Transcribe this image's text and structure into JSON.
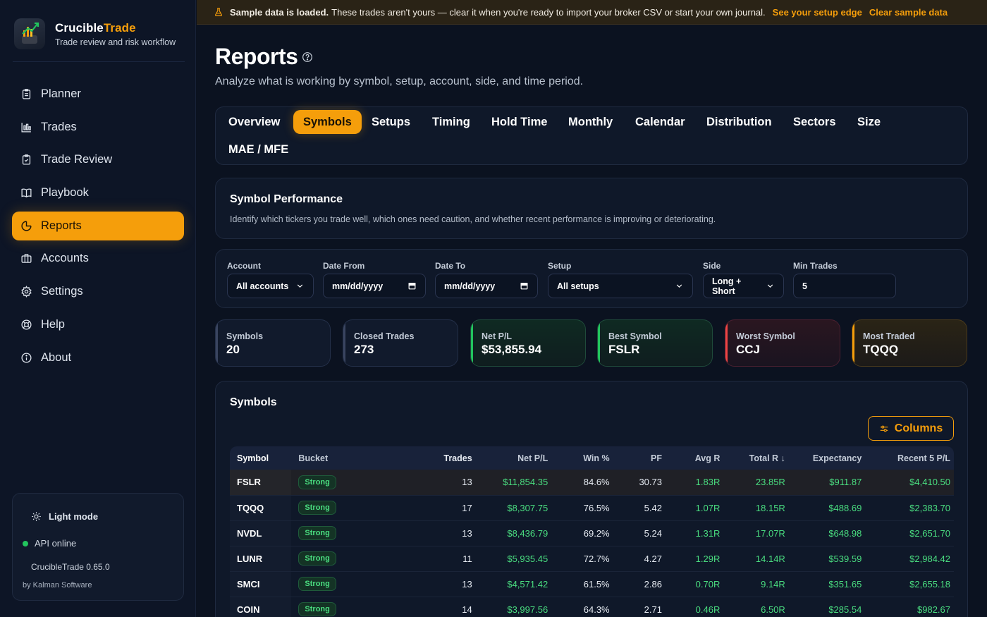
{
  "brand": {
    "name_primary": "Crucible",
    "name_accent": "Trade",
    "subtitle": "Trade review and risk workflow"
  },
  "nav": [
    {
      "label": "Planner",
      "icon": "clipboard-icon"
    },
    {
      "label": "Trades",
      "icon": "chart-icon"
    },
    {
      "label": "Trade Review",
      "icon": "clipboard-check-icon"
    },
    {
      "label": "Playbook",
      "icon": "book-icon"
    },
    {
      "label": "Reports",
      "icon": "pie-chart-icon",
      "active": true
    },
    {
      "label": "Accounts",
      "icon": "briefcase-icon"
    },
    {
      "label": "Settings",
      "icon": "gear-icon"
    },
    {
      "label": "Help",
      "icon": "lifebuoy-icon"
    },
    {
      "label": "About",
      "icon": "info-icon"
    }
  ],
  "footer": {
    "light_mode": "Light mode",
    "api_status": "API online",
    "version": "CrucibleTrade 0.65.0",
    "byline": "by Kalman Software"
  },
  "banner": {
    "bold": "Sample data is loaded.",
    "text": "These trades aren't yours — clear it when you're ready to import your broker CSV or start your own journal.",
    "link1": "See your setup edge",
    "link2": "Clear sample data"
  },
  "page": {
    "title": "Reports",
    "subtitle": "Analyze what is working by symbol, setup, account, side, and time period."
  },
  "tabs": [
    "Overview",
    "Symbols",
    "Setups",
    "Timing",
    "Hold Time",
    "Monthly",
    "Calendar",
    "Distribution",
    "Sectors",
    "Size",
    "MAE / MFE"
  ],
  "active_tab": "Symbols",
  "performance": {
    "title": "Symbol Performance",
    "subtitle": "Identify which tickers you trade well, which ones need caution, and whether recent performance is improving or deteriorating."
  },
  "filters": {
    "account": {
      "label": "Account",
      "value": "All accounts"
    },
    "date_from": {
      "label": "Date From",
      "value": "mm/dd/yyyy"
    },
    "date_to": {
      "label": "Date To",
      "value": "mm/dd/yyyy"
    },
    "setup": {
      "label": "Setup",
      "value": "All setups"
    },
    "side": {
      "label": "Side",
      "value": "Long + Short"
    },
    "min_trades": {
      "label": "Min Trades",
      "value": "5"
    }
  },
  "stats": [
    {
      "label": "Symbols",
      "value": "20"
    },
    {
      "label": "Closed Trades",
      "value": "273"
    },
    {
      "label": "Net P/L",
      "value": "$53,855.94"
    },
    {
      "label": "Best Symbol",
      "value": "FSLR"
    },
    {
      "label": "Worst Symbol",
      "value": "CCJ"
    },
    {
      "label": "Most Traded",
      "value": "TQQQ"
    }
  ],
  "table": {
    "title": "Symbols",
    "columns_button": "Columns",
    "headers": [
      "Symbol",
      "Bucket",
      "Trades",
      "Net P/L",
      "Win %",
      "PF",
      "Avg R",
      "Total R ↓",
      "Expectancy",
      "Recent 5 P/L"
    ],
    "rows": [
      [
        "FSLR",
        "Strong",
        "13",
        "$11,854.35",
        "84.6%",
        "30.73",
        "1.83R",
        "23.85R",
        "$911.87",
        "$4,410.50"
      ],
      [
        "TQQQ",
        "Strong",
        "17",
        "$8,307.75",
        "76.5%",
        "5.42",
        "1.07R",
        "18.15R",
        "$488.69",
        "$2,383.70"
      ],
      [
        "NVDL",
        "Strong",
        "13",
        "$8,436.79",
        "69.2%",
        "5.24",
        "1.31R",
        "17.07R",
        "$648.98",
        "$2,651.70"
      ],
      [
        "LUNR",
        "Strong",
        "11",
        "$5,935.45",
        "72.7%",
        "4.27",
        "1.29R",
        "14.14R",
        "$539.59",
        "$2,984.42"
      ],
      [
        "SMCI",
        "Strong",
        "13",
        "$4,571.42",
        "61.5%",
        "2.86",
        "0.70R",
        "9.14R",
        "$351.65",
        "$2,655.18"
      ],
      [
        "COIN",
        "Strong",
        "14",
        "$3,997.56",
        "64.3%",
        "2.71",
        "0.46R",
        "6.50R",
        "$285.54",
        "$982.67"
      ]
    ]
  },
  "colors": {
    "accent": "#f59e0b",
    "positive": "#4ade80",
    "negative": "#ef4444",
    "background": "#0b1220"
  }
}
